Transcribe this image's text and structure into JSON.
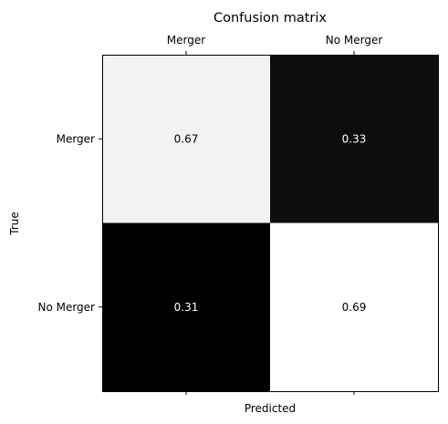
{
  "chart_data": {
    "type": "heatmap",
    "title": "Confusion matrix",
    "xlabel": "Predicted",
    "ylabel": "True",
    "x_categories": [
      "Merger",
      "No Merger"
    ],
    "y_categories": [
      "Merger",
      "No Merger"
    ],
    "values": [
      [
        0.67,
        0.33
      ],
      [
        0.31,
        0.69
      ]
    ],
    "value_labels": [
      [
        "0.67",
        "0.33"
      ],
      [
        "0.31",
        "0.69"
      ]
    ],
    "colormap": "gray",
    "color_range": [
      0.31,
      0.69
    ],
    "x_ticks_position": "top",
    "grid": false,
    "text_colors": {
      "light_cell": "#000000",
      "dark_cell": "#ffffff"
    }
  }
}
